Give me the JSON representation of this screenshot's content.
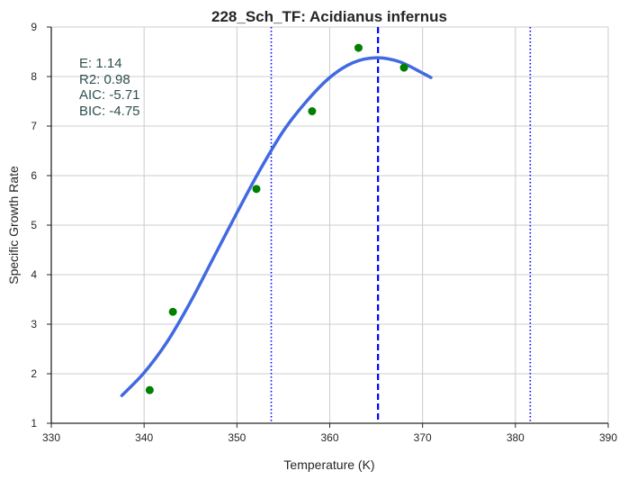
{
  "chart_data": {
    "type": "scatter",
    "title": "228_Sch_TF: Acidianus infernus",
    "xlabel": "Temperature (K)",
    "ylabel": "Specific Growth Rate",
    "xlim": [
      330,
      390
    ],
    "ylim": [
      1,
      9
    ],
    "xticks": [
      330,
      340,
      350,
      360,
      370,
      380,
      390
    ],
    "yticks": [
      1,
      2,
      3,
      4,
      5,
      6,
      7,
      8,
      9
    ],
    "grid": true,
    "points": {
      "color": "#008000",
      "x": [
        340.6,
        343.1,
        352.1,
        358.1,
        363.1,
        368.0
      ],
      "y": [
        1.67,
        3.25,
        5.73,
        7.3,
        8.58,
        8.18
      ]
    },
    "fit_curve": {
      "color": "#4169e1",
      "x": [
        337.6,
        340,
        342.5,
        345,
        347.5,
        350,
        352.5,
        355,
        357.5,
        360,
        362.5,
        365,
        367.5,
        370,
        370.9
      ],
      "y": [
        1.56,
        2.02,
        2.65,
        3.45,
        4.35,
        5.25,
        6.12,
        6.9,
        7.5,
        7.98,
        8.28,
        8.38,
        8.3,
        8.07,
        7.98
      ]
    },
    "vlines": [
      {
        "x": 353.7,
        "style": "dotted",
        "color": "#0000ff"
      },
      {
        "x": 365.2,
        "style": "dashed",
        "color": "#0000ff"
      },
      {
        "x": 381.6,
        "style": "dotted",
        "color": "#0000ff"
      }
    ],
    "stats": [
      "E:  1.14",
      "R2:  0.98",
      "AIC: -5.71",
      "BIC: -4.75"
    ]
  }
}
